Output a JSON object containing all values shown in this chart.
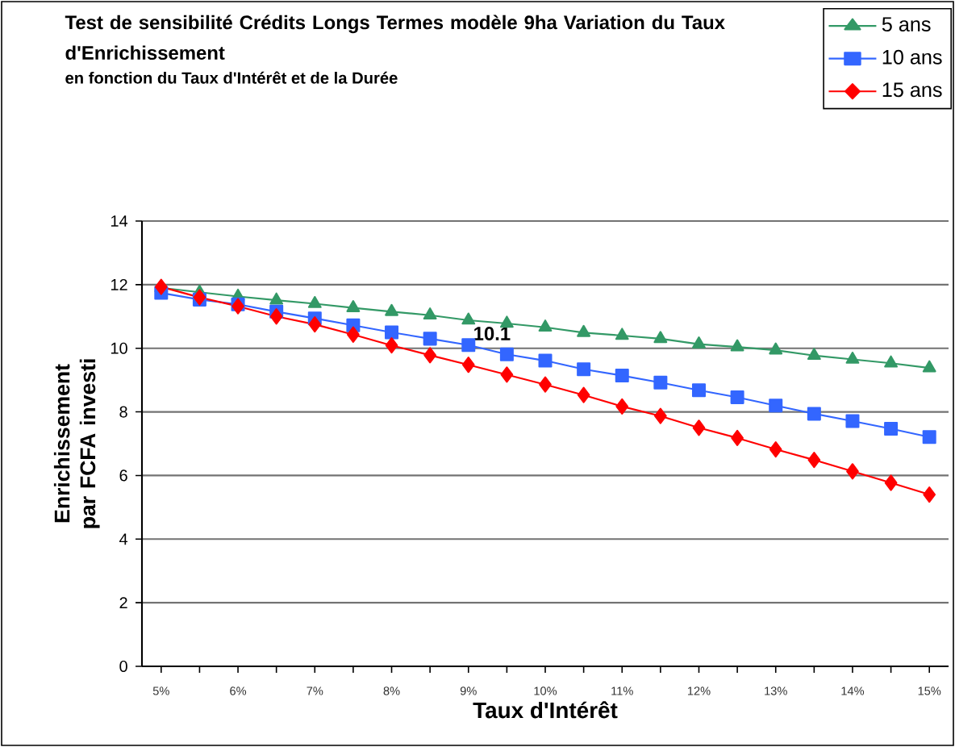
{
  "chart_data": {
    "type": "line",
    "title": "Test de sensibilité Crédits Longs Termes modèle 9ha Variation du Taux d'Enrichissement",
    "subtitle": "en fonction du Taux d'Intérêt et de la Durée",
    "xlabel": "Taux d'Intérêt",
    "ylabel": "Enrichissement par FCFA investi",
    "categories": [
      "5%",
      null,
      "6%",
      null,
      "7%",
      null,
      "8%",
      null,
      "9%",
      null,
      "10%",
      null,
      "11%",
      null,
      "12%",
      null,
      "13%",
      null,
      "14%",
      null,
      "15%"
    ],
    "series": [
      {
        "name": "5 ans",
        "color": "#339966",
        "marker": "triangle",
        "values": [
          11.9,
          11.76,
          11.63,
          11.51,
          11.4,
          11.27,
          11.15,
          11.04,
          10.88,
          10.78,
          10.66,
          10.49,
          10.4,
          10.3,
          10.13,
          10.04,
          9.94,
          9.77,
          9.65,
          9.53,
          9.38
        ]
      },
      {
        "name": "10 ans",
        "color": "#3366ff",
        "marker": "square",
        "values": [
          11.74,
          11.53,
          11.38,
          11.15,
          10.94,
          10.72,
          10.5,
          10.3,
          10.1,
          9.81,
          9.61,
          9.34,
          9.14,
          8.92,
          8.68,
          8.46,
          8.2,
          7.94,
          7.71,
          7.47,
          7.21
        ],
        "value_labels": [
          null,
          null,
          null,
          null,
          null,
          null,
          null,
          null,
          "10.1",
          null,
          null,
          null,
          null,
          null,
          null,
          null,
          null,
          null,
          null,
          null,
          null
        ]
      },
      {
        "name": "15 ans",
        "color": "#ff0000",
        "marker": "diamond",
        "values": [
          11.93,
          11.6,
          11.32,
          11.0,
          10.75,
          10.43,
          10.09,
          9.78,
          9.48,
          9.17,
          8.86,
          8.53,
          8.17,
          7.87,
          7.5,
          7.18,
          6.82,
          6.49,
          6.13,
          5.77,
          5.4
        ]
      }
    ],
    "ylim": [
      0,
      14
    ],
    "yticks": [
      0,
      2,
      4,
      6,
      8,
      10,
      12,
      14
    ],
    "grid": "y",
    "legend": "top right"
  }
}
